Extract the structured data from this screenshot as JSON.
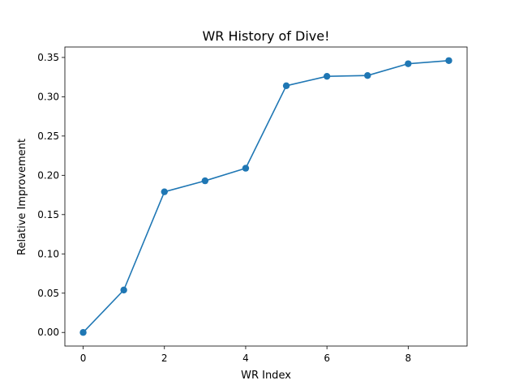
{
  "chart_data": {
    "type": "line",
    "title": "WR History of Dive!",
    "xlabel": "WR Index",
    "ylabel": "Relative Improvement",
    "x": [
      0,
      1,
      2,
      3,
      4,
      5,
      6,
      7,
      8,
      9
    ],
    "series": [
      {
        "values": [
          0.0,
          0.054,
          0.179,
          0.193,
          0.209,
          0.314,
          0.326,
          0.327,
          0.342,
          0.346
        ],
        "color": "#1f77b4",
        "marker": "circle"
      }
    ],
    "xticks": [
      0,
      2,
      4,
      6,
      8
    ],
    "xtick_labels": [
      "0",
      "2",
      "4",
      "6",
      "8"
    ],
    "yticks": [
      0.0,
      0.05,
      0.1,
      0.15,
      0.2,
      0.25,
      0.3,
      0.35
    ],
    "ytick_labels": [
      "0.00",
      "0.05",
      "0.10",
      "0.15",
      "0.20",
      "0.25",
      "0.30",
      "0.35"
    ],
    "xlim": [
      -0.45,
      9.45
    ],
    "ylim": [
      -0.0173,
      0.3633
    ],
    "grid": false,
    "legend": "none"
  }
}
